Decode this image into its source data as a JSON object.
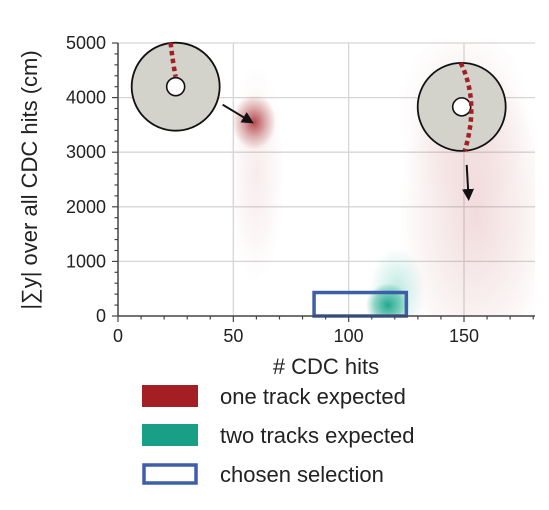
{
  "chart_data": {
    "type": "scatter",
    "xlabel": "# CDC hits",
    "ylabel": "|∑y| over all CDC hits (cm)",
    "xlim": [
      0,
      180
    ],
    "ylim": [
      0,
      5000
    ],
    "xticks": [
      "0",
      "50",
      "100",
      "150"
    ],
    "yticks": [
      "0",
      "1000",
      "2000",
      "3000",
      "4000",
      "5000"
    ],
    "grid": true,
    "legend_position": "bottom",
    "series": [
      {
        "name": "one track expected",
        "color": "#a31f24",
        "regions": [
          {
            "x_center": 59,
            "y_center": 3550,
            "x_spread": 4,
            "y_spread": 250,
            "density": "high"
          },
          {
            "x_center": 60,
            "y_center": 2600,
            "x_spread": 5,
            "y_spread": 1000,
            "density": "low"
          },
          {
            "x_center": 155,
            "y_center": 1800,
            "x_spread": 14,
            "y_spread": 1400,
            "density": "medium"
          },
          {
            "x_center": 150,
            "y_center": 3600,
            "x_spread": 12,
            "y_spread": 900,
            "density": "low"
          }
        ]
      },
      {
        "name": "two tracks expected",
        "color": "#1a9f87",
        "regions": [
          {
            "x_center": 117,
            "y_center": 200,
            "x_spread": 4,
            "y_spread": 200,
            "density": "high"
          },
          {
            "x_center": 121,
            "y_center": 450,
            "x_spread": 5,
            "y_spread": 400,
            "density": "medium"
          }
        ]
      }
    ],
    "selection": {
      "name": "chosen selection",
      "color": "#3d5ea8",
      "x_range": [
        85,
        125
      ],
      "y_range": [
        0,
        430
      ]
    },
    "insets": [
      {
        "name": "single-track-detector-inset",
        "x_data": 25,
        "y_data": 4200,
        "arrow_to": [
          58,
          3550
        ]
      },
      {
        "name": "two-track-detector-inset",
        "x_data": 149,
        "y_data": 3830,
        "arrow_to": [
          152,
          2150
        ]
      }
    ]
  }
}
